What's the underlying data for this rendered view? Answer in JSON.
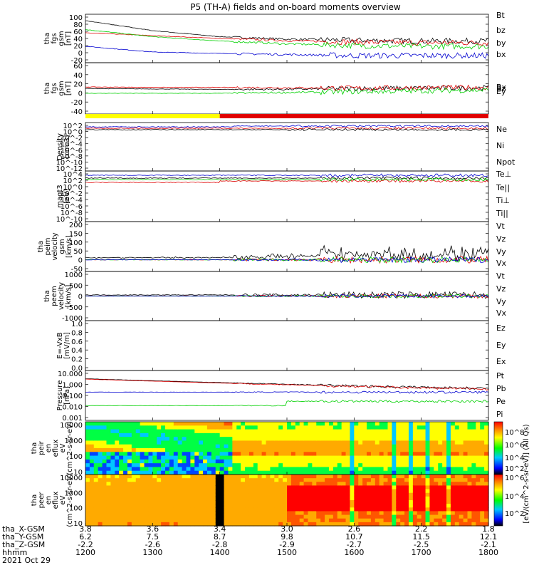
{
  "title": "P5 (TH-A) fields and on-board moments overview",
  "footer": {
    "row_labels": [
      "tha_X-GSM",
      "tha_Y-GSM",
      "tha_Z-GSM",
      "hhmm",
      "2021 Oct 29"
    ],
    "columns": [
      {
        "x": "3.8",
        "y": "6.2",
        "z": "-2.2",
        "hhmm": "1200"
      },
      {
        "x": "3.6",
        "y": "7.5",
        "z": "-2.6",
        "hhmm": "1300"
      },
      {
        "x": "3.4",
        "y": "8.7",
        "z": "-2.8",
        "hhmm": "1400"
      },
      {
        "x": "3.0",
        "y": "9.8",
        "z": "-2.9",
        "hhmm": "1500"
      },
      {
        "x": "2.6",
        "y": "10.7",
        "z": "-2.7",
        "hhmm": "1600"
      },
      {
        "x": "2.2",
        "y": "11.5",
        "z": "-2.5",
        "hhmm": "1700"
      },
      {
        "x": "1.8",
        "y": "12.1",
        "z": "-2.1",
        "hhmm": "1800"
      }
    ]
  },
  "colorbar_label": "[eV/(cm^2-s-sr-eV)] (All Qs)",
  "colorbar_ticks": [
    "10^8",
    "10^6",
    "10^4",
    "10^2",
    "10^6",
    "10^4",
    "10^2"
  ],
  "colors": {
    "black": "#000000",
    "red": "#e00000",
    "green": "#00d000",
    "blue": "#0000d0",
    "yellow": "#ffff00"
  },
  "chart_data": [
    {
      "type": "line",
      "ylabel": "tha fgs gsm [nT]",
      "yticks": [
        "100",
        "80",
        "60",
        "40",
        "20",
        "0",
        "-20"
      ],
      "ylim": [
        -20,
        100
      ],
      "x_hours": [
        12,
        18
      ],
      "series": [
        {
          "name": "Bt",
          "color": "#000000",
          "x": [
            12,
            13,
            14,
            15,
            16,
            17,
            18
          ],
          "values": [
            90,
            62,
            45,
            38,
            35,
            33,
            33
          ]
        },
        {
          "name": "bz",
          "color": "#e00000",
          "x": [
            12,
            13,
            14,
            15,
            16,
            17,
            18
          ],
          "values": [
            56,
            48,
            40,
            34,
            30,
            28,
            28
          ]
        },
        {
          "name": "by",
          "color": "#00d000",
          "x": [
            12,
            13,
            14,
            15,
            16,
            17,
            18
          ],
          "values": [
            65,
            45,
            33,
            25,
            20,
            18,
            18
          ]
        },
        {
          "name": "bx",
          "color": "#0000d0",
          "x": [
            12,
            13,
            14,
            15,
            16,
            17,
            18
          ],
          "values": [
            18,
            2,
            -2,
            -5,
            -8,
            -8,
            -8
          ]
        }
      ]
    },
    {
      "type": "line",
      "ylabel": "tha fgs gsm [nT]",
      "yticks": [
        "60",
        "40",
        "20",
        "0",
        "-20",
        "-40"
      ],
      "ylim": [
        -55,
        60
      ],
      "x_hours": [
        12,
        18
      ],
      "series": [
        {
          "name": "Bz",
          "color": "#000000",
          "x": [
            12,
            13,
            14,
            15,
            16,
            17,
            18
          ],
          "values": [
            2,
            1,
            0,
            0,
            2,
            3,
            4
          ]
        },
        {
          "name": "Bx",
          "color": "#e00000",
          "x": [
            12,
            13,
            14,
            15,
            16,
            17,
            18
          ],
          "values": [
            6,
            5,
            5,
            4,
            3,
            4,
            5
          ]
        },
        {
          "name": "Ey",
          "color": "#00d000",
          "x": [
            12,
            13,
            14,
            15,
            16,
            17,
            18
          ],
          "values": [
            -10,
            -10,
            -10,
            -8,
            -6,
            -4,
            -2
          ]
        }
      ]
    },
    {
      "type": "line",
      "ylabel": "Density [cm-3]",
      "yticks": [
        "10^2",
        "10^0",
        "10^-2",
        "10^-4",
        "10^-6",
        "10^-8",
        "10^-10",
        "10^-12"
      ],
      "series": [
        {
          "name": "Ne",
          "color": "#e00000"
        },
        {
          "name": "Ni",
          "color": "#000000"
        },
        {
          "name": "Npot",
          "color": "#0000d0"
        }
      ]
    },
    {
      "type": "line",
      "ylabel": "magt3 [eV]",
      "yticks": [
        "10^4",
        "10^2",
        "10^0",
        "10^-2",
        "10^-4",
        "10^-6",
        "10^-8",
        "10^-10"
      ],
      "series": [
        {
          "name": "Te⊥",
          "color": "#e00000"
        },
        {
          "name": "Te||",
          "color": "#000000"
        },
        {
          "name": "Ti⊥",
          "color": "#0000d0"
        },
        {
          "name": "Ti||",
          "color": "#00d000"
        }
      ]
    },
    {
      "type": "line",
      "ylabel": "tha peim velocity gsm [km/s]",
      "yticks": [
        "200",
        "150",
        "100",
        "50",
        "0",
        "-50"
      ],
      "ylim": [
        -50,
        200
      ],
      "series": [
        {
          "name": "Vt",
          "color": "#000000"
        },
        {
          "name": "Vz",
          "color": "#e00000"
        },
        {
          "name": "Vy",
          "color": "#00d000"
        },
        {
          "name": "Vx",
          "color": "#0000d0"
        }
      ]
    },
    {
      "type": "line",
      "ylabel": "tha peem velocity [km/s]",
      "yticks": [
        "1000",
        "500",
        "0",
        "-500",
        "-1000"
      ],
      "ylim": [
        -1000,
        1000
      ],
      "series": [
        {
          "name": "Vt",
          "color": "#000000"
        },
        {
          "name": "Vz",
          "color": "#e00000"
        },
        {
          "name": "Vy",
          "color": "#00d000"
        },
        {
          "name": "Vx",
          "color": "#0000d0"
        }
      ]
    },
    {
      "type": "line",
      "ylabel": "E=-VxB [mV/m]",
      "yticks": [
        "1.0",
        "0.8",
        "0.6",
        "0.4",
        "0.2",
        "0.0"
      ],
      "ylim": [
        0,
        1
      ],
      "series": [
        {
          "name": "Ez",
          "color": "#e00000"
        },
        {
          "name": "Ey",
          "color": "#00d000"
        },
        {
          "name": "Ex",
          "color": "#0000d0"
        }
      ]
    },
    {
      "type": "line",
      "ylabel": "Pressure [nPa]",
      "yticks": [
        "10.000",
        "1.000",
        "0.100",
        "0.010",
        "0.001"
      ],
      "yscale": "log",
      "series": [
        {
          "name": "Pt",
          "color": "#000000"
        },
        {
          "name": "Pb",
          "color": "#e00000"
        },
        {
          "name": "Pe",
          "color": "#00d000"
        },
        {
          "name": "Pi",
          "color": "#0000d0"
        }
      ]
    },
    {
      "type": "heatmap",
      "ylabel": "tha peir en eflux eV (cm^2-s-sr-eV)",
      "yticks": [
        "10000",
        "1000",
        "100",
        "10"
      ]
    },
    {
      "type": "heatmap",
      "ylabel": "tha peer en eflux eV (cm^2-s-sr-eV)",
      "yticks": [
        "10000",
        "1000",
        "100",
        "10"
      ]
    }
  ]
}
